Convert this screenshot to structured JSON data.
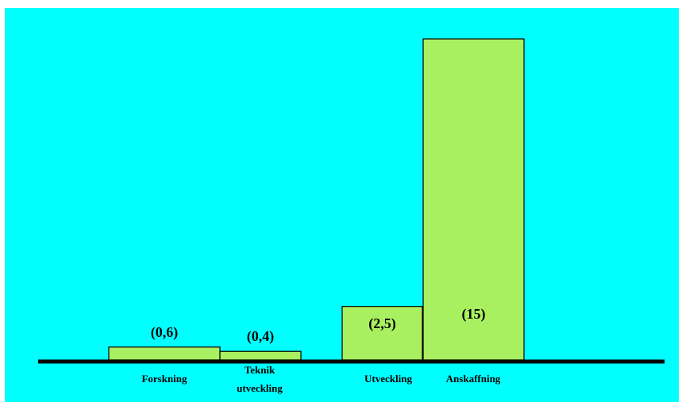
{
  "colors": {
    "background": "#00ffff",
    "bar_fill": "#a8f060",
    "bar_stroke": "#000000",
    "baseline": "#000000",
    "text": "#000000"
  },
  "chart_data": {
    "type": "bar",
    "title": "",
    "xlabel": "",
    "ylabel": "",
    "categories": [
      [
        "Forskning"
      ],
      [
        "Teknik",
        "utveckling"
      ],
      [
        "Utveckling"
      ],
      [
        "Anskaffning"
      ]
    ],
    "values": [
      0.6,
      0.4,
      2.5,
      15
    ],
    "value_labels": [
      "(0,6)",
      "(0,4)",
      "(2,5)",
      "(15)"
    ],
    "value_label_position": [
      "above",
      "above",
      "inside",
      "inside"
    ],
    "ylim": [
      0,
      15
    ],
    "grid": false,
    "legend": "none",
    "y_axis_visible": false,
    "bar_spacing": "unequal"
  }
}
